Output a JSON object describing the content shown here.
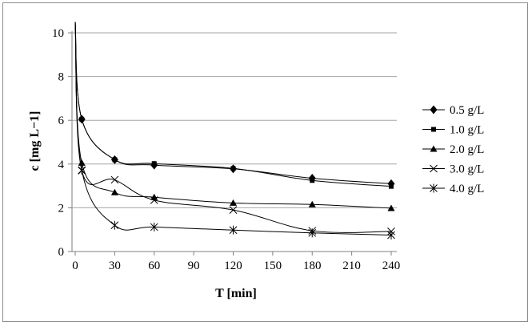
{
  "chart_data": {
    "type": "line",
    "title": "",
    "xlabel": "T [min]",
    "ylabel": "c [mg L−1]",
    "xlim": [
      0,
      240
    ],
    "ylim": [
      0,
      10
    ],
    "xticks": [
      "0",
      "30",
      "60",
      "90",
      "120",
      "150",
      "180",
      "210",
      "240"
    ],
    "yticks": [
      "0",
      "2",
      "4",
      "6",
      "8",
      "10"
    ],
    "grid": "horizontal",
    "legend_position": "right",
    "colors": {
      "line": "#000000",
      "grid": "#a6a6a6",
      "axis": "#7f7f7f"
    },
    "series": [
      {
        "name": "0.5 g/L",
        "marker": "diamond",
        "x": [
          0,
          5,
          30,
          60,
          120,
          180,
          240
        ],
        "y": [
          10.5,
          6.05,
          4.2,
          3.95,
          3.78,
          3.35,
          3.1
        ]
      },
      {
        "name": "1.0 g/L",
        "marker": "square",
        "x": [
          0,
          5,
          30,
          60,
          120,
          180,
          240
        ],
        "y": [
          10.5,
          6.05,
          4.2,
          4.02,
          3.8,
          3.25,
          2.98
        ]
      },
      {
        "name": "2.0 g/L",
        "marker": "triangle",
        "x": [
          0,
          5,
          30,
          60,
          120,
          180,
          240
        ],
        "y": [
          10.5,
          4.05,
          2.7,
          2.48,
          2.22,
          2.15,
          1.98
        ]
      },
      {
        "name": "3.0 g/L",
        "marker": "x",
        "x": [
          0,
          5,
          30,
          60,
          120,
          180,
          240
        ],
        "y": [
          10.5,
          3.7,
          3.28,
          2.35,
          1.9,
          0.95,
          0.92
        ]
      },
      {
        "name": "4.0 g/L",
        "marker": "asterisk",
        "x": [
          0,
          5,
          30,
          60,
          120,
          180,
          240
        ],
        "y": [
          10.5,
          3.72,
          1.2,
          1.12,
          0.98,
          0.85,
          0.75
        ]
      }
    ]
  }
}
